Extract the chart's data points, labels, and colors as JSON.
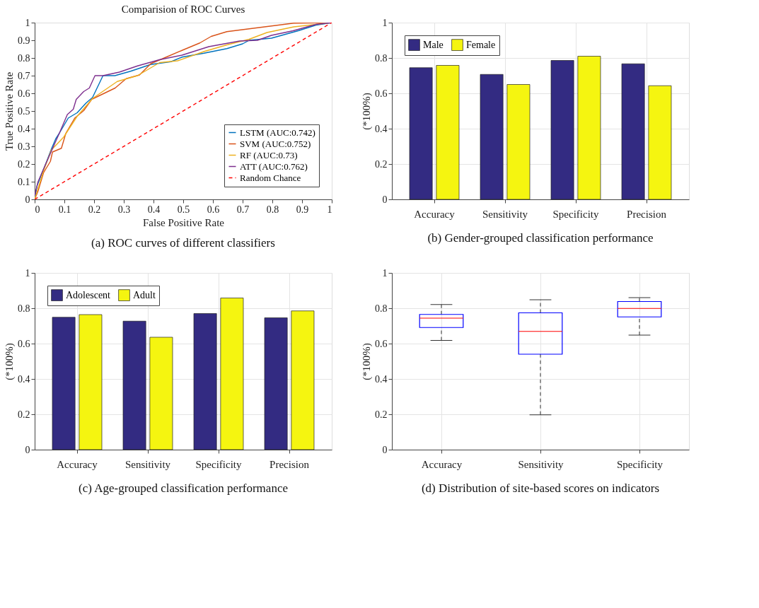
{
  "chart_data": [
    {
      "type": "line",
      "title": "Comparision of ROC Curves",
      "xlabel": "False Positive Rate",
      "ylabel": "True Positive Rate",
      "annotations": [
        "(a) ROC curves of different classifiers"
      ],
      "xlim": [
        0,
        1
      ],
      "ylim": [
        0,
        1
      ],
      "xticks": [
        0,
        0.1,
        0.2,
        0.3,
        0.4,
        0.5,
        0.6,
        0.7,
        0.8,
        0.9,
        1
      ],
      "yticks": [
        0,
        0.1,
        0.2,
        0.3,
        0.4,
        0.5,
        0.6,
        0.7,
        0.8,
        0.9,
        1
      ],
      "grid": false,
      "legend": "bottom right",
      "series": [
        {
          "name": "LSTM (AUC:0.742)",
          "color": "#0072bd",
          "line_style": "solid",
          "x": [
            0,
            0.008,
            0.038,
            0.056,
            0.071,
            0.083,
            0.113,
            0.143,
            0.173,
            0.195,
            0.21,
            0.23,
            0.27,
            0.323,
            0.39,
            0.459,
            0.496,
            0.57,
            0.647,
            0.7,
            0.722,
            0.797,
            0.887,
            0.947,
            1
          ],
          "values": [
            0,
            0.077,
            0.204,
            0.284,
            0.343,
            0.374,
            0.46,
            0.49,
            0.545,
            0.577,
            0.63,
            0.7,
            0.7,
            0.725,
            0.763,
            0.779,
            0.805,
            0.827,
            0.853,
            0.88,
            0.9,
            0.912,
            0.954,
            0.986,
            1
          ]
        },
        {
          "name": "SVM (AUC:0.752)",
          "color": "#d95319",
          "line_style": "solid",
          "x": [
            0,
            0.011,
            0.03,
            0.053,
            0.06,
            0.09,
            0.105,
            0.135,
            0.165,
            0.192,
            0.218,
            0.271,
            0.308,
            0.353,
            0.391,
            0.436,
            0.496,
            0.556,
            0.594,
            0.647,
            0.722,
            0.797,
            0.872,
            1
          ],
          "values": [
            0,
            0.045,
            0.151,
            0.215,
            0.268,
            0.289,
            0.374,
            0.46,
            0.502,
            0.566,
            0.587,
            0.63,
            0.683,
            0.704,
            0.768,
            0.8,
            0.843,
            0.885,
            0.922,
            0.949,
            0.965,
            0.981,
            0.997,
            1
          ]
        },
        {
          "name": "RF (AUC:0.73)",
          "color": "#edb120",
          "line_style": "solid",
          "x": [
            0,
            0.03,
            0.056,
            0.098,
            0.143,
            0.195,
            0.278,
            0.346,
            0.421,
            0.481,
            0.571,
            0.647,
            0.722,
            0.782,
            0.872,
            1
          ],
          "values": [
            0,
            0.162,
            0.279,
            0.353,
            0.47,
            0.571,
            0.667,
            0.7,
            0.774,
            0.784,
            0.837,
            0.874,
            0.906,
            0.944,
            0.976,
            1
          ]
        },
        {
          "name": "ATT (AUC:0.762)",
          "color": "#7e2f8e",
          "line_style": "solid",
          "x": [
            0,
            0.011,
            0.041,
            0.083,
            0.11,
            0.13,
            0.14,
            0.165,
            0.184,
            0.203,
            0.23,
            0.285,
            0.346,
            0.42,
            0.496,
            0.586,
            0.69,
            0.75,
            0.797,
            0.87,
            0.947,
            1
          ],
          "values": [
            0.02,
            0.098,
            0.215,
            0.374,
            0.48,
            0.51,
            0.566,
            0.61,
            0.63,
            0.7,
            0.7,
            0.72,
            0.755,
            0.79,
            0.816,
            0.864,
            0.896,
            0.9,
            0.928,
            0.954,
            0.99,
            1
          ]
        },
        {
          "name": "Random Chance",
          "color": "#ff0000",
          "line_style": "dashed",
          "x": [
            0,
            1
          ],
          "values": [
            0,
            1
          ]
        }
      ]
    },
    {
      "type": "bar",
      "ylabel": "(*100%)",
      "annotations": [
        "(b) Gender-grouped classification performance"
      ],
      "categories": [
        "Accuracy",
        "Sensitivity",
        "Specificity",
        "Precision"
      ],
      "ylim": [
        0,
        1
      ],
      "yticks": [
        0,
        0.2,
        0.4,
        0.6,
        0.8,
        1
      ],
      "grid": true,
      "legend": "top left",
      "series": [
        {
          "name": "Male",
          "color": "#332b82",
          "values": [
            0.745,
            0.707,
            0.786,
            0.767
          ]
        },
        {
          "name": "Female",
          "color": "#f5f510",
          "values": [
            0.758,
            0.65,
            0.81,
            0.643
          ]
        }
      ]
    },
    {
      "type": "bar",
      "ylabel": "(*100%)",
      "annotations": [
        "(c) Age-grouped classification performance"
      ],
      "categories": [
        "Accuracy",
        "Sensitivity",
        "Specificity",
        "Precision"
      ],
      "ylim": [
        0,
        1
      ],
      "yticks": [
        0,
        0.2,
        0.4,
        0.6,
        0.8,
        1
      ],
      "grid": true,
      "legend": "top left",
      "series": [
        {
          "name": "Adolescent",
          "color": "#332b82",
          "values": [
            0.749,
            0.727,
            0.77,
            0.746
          ]
        },
        {
          "name": "Adult",
          "color": "#f5f510",
          "values": [
            0.764,
            0.636,
            0.858,
            0.785
          ]
        }
      ]
    },
    {
      "type": "box",
      "ylabel": "(*100%)",
      "annotations": [
        "(d) Distribution of site-based scores on indicators"
      ],
      "categories": [
        "Accuracy",
        "Sensitivity",
        "Specificity"
      ],
      "ylim": [
        0,
        1
      ],
      "yticks": [
        0,
        0.2,
        0.4,
        0.6,
        0.8,
        1
      ],
      "grid": true,
      "series": [
        {
          "color": "#0000ff",
          "boxes": [
            {
              "low": 0.618,
              "q1": 0.691,
              "median": 0.744,
              "q3": 0.765,
              "high": 0.821
            },
            {
              "low": 0.197,
              "q1": 0.54,
              "median": 0.669,
              "q3": 0.774,
              "high": 0.848
            },
            {
              "low": 0.648,
              "q1": 0.751,
              "median": 0.799,
              "q3": 0.838,
              "high": 0.86
            }
          ]
        }
      ]
    }
  ]
}
